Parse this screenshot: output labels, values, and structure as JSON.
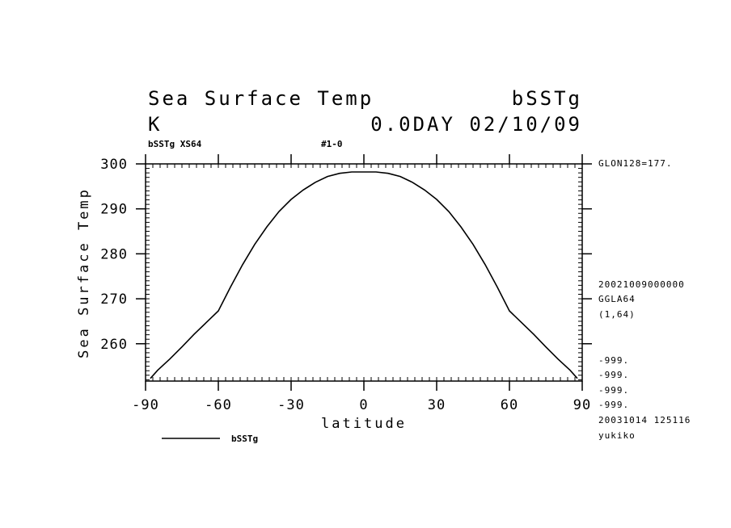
{
  "header": {
    "title_left": "Sea Surface Temp",
    "title_right": "bSSTg",
    "unit": "K",
    "time_label": "0.0DAY 02/10/09",
    "sub_left": "bSSTg XS64",
    "sub_mid": "#1-0"
  },
  "side_info": {
    "glon": "GLON128=177.",
    "date_code": "20021009000000",
    "grid_name": "GGLA64",
    "grid_range": "(1,64)",
    "missing_values": [
      "-999.",
      "-999.",
      "-999.",
      "-999."
    ],
    "stamp": "20031014 125116",
    "user": "yukiko"
  },
  "legend": {
    "series_label": "bSSTg"
  },
  "chart_data": {
    "type": "line",
    "xlabel": "latitude",
    "ylabel": "Sea Surface Temp",
    "xlim": [
      -90,
      90
    ],
    "ylim": [
      251.7,
      300
    ],
    "x_ticks": [
      -90,
      -60,
      -30,
      0,
      30,
      60,
      90
    ],
    "x_tick_labels": [
      "-90",
      "-60",
      "-30",
      "0",
      "30",
      "60",
      "90"
    ],
    "y_ticks": [
      260,
      270,
      280,
      290,
      300
    ],
    "y_tick_labels": [
      "260",
      "270",
      "280",
      "290",
      "300"
    ],
    "grid": false,
    "series": [
      {
        "name": "bSSTg",
        "x": [
          -88,
          -85,
          -80,
          -75,
          -70,
          -65,
          -60,
          -55,
          -50,
          -45,
          -40,
          -35,
          -30,
          -25,
          -20,
          -15,
          -10,
          -5,
          0,
          5,
          10,
          15,
          20,
          25,
          30,
          35,
          40,
          45,
          50,
          55,
          60,
          65,
          70,
          75,
          80,
          85,
          88
        ],
        "y": [
          252.3,
          254.1,
          256.6,
          259.3,
          262.1,
          264.7,
          267.3,
          272.6,
          277.6,
          282.1,
          286.0,
          289.4,
          292.1,
          294.2,
          295.9,
          297.2,
          297.9,
          298.2,
          298.2,
          298.2,
          297.9,
          297.2,
          295.9,
          294.2,
          292.1,
          289.4,
          286.0,
          282.1,
          277.6,
          272.6,
          267.3,
          264.7,
          262.1,
          259.3,
          256.6,
          254.1,
          252.3
        ]
      }
    ]
  }
}
